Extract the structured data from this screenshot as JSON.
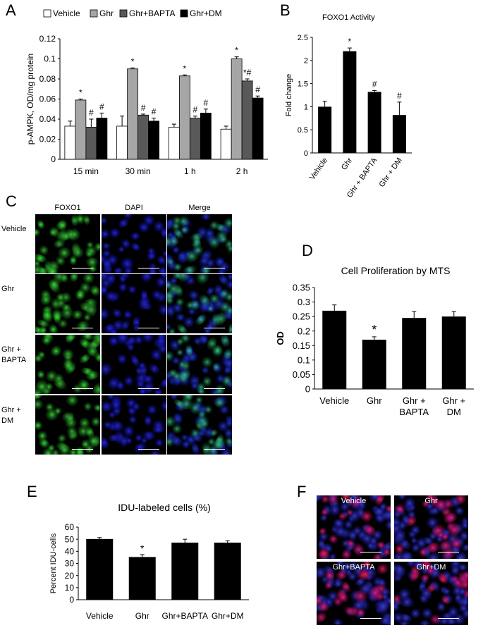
{
  "panels": {
    "A": "A",
    "B": "B",
    "C": "C",
    "D": "D",
    "E": "E",
    "F": "F"
  },
  "colors": {
    "vehicle": "#ffffff",
    "ghr": "#a6a6a6",
    "ghr_bapta": "#595959",
    "ghr_dm": "#000000",
    "bar": "#000000",
    "dapi": "#0000cc",
    "foxo": "#22b522"
  },
  "chart_data": [
    {
      "id": "A",
      "type": "bar",
      "ylabel": "p-AMPK, OD/mg protein",
      "ylim": [
        0,
        0.12
      ],
      "yticks": [
        "0",
        "0.02",
        "0.04",
        "0.06",
        "0.08",
        "0.1",
        "0.12"
      ],
      "categories": [
        "15 min",
        "30 min",
        "1 h",
        "2 h"
      ],
      "series": [
        {
          "name": "Vehicle",
          "color": "#ffffff",
          "values": [
            0.033,
            0.033,
            0.032,
            0.03
          ],
          "errors": [
            0.005,
            0.01,
            0.003,
            0.003
          ],
          "annot": [
            "",
            "",
            "",
            ""
          ]
        },
        {
          "name": "Ghr",
          "color": "#a6a6a6",
          "values": [
            0.059,
            0.09,
            0.083,
            0.1
          ],
          "errors": [
            0.001,
            0.001,
            0.001,
            0.002
          ],
          "annot": [
            "*",
            "*",
            "*",
            "*"
          ]
        },
        {
          "name": "Ghr+BAPTA",
          "color": "#595959",
          "values": [
            0.032,
            0.044,
            0.041,
            0.078
          ],
          "errors": [
            0.008,
            0.001,
            0.002,
            0.002
          ],
          "annot": [
            "#",
            "#",
            "#",
            "*#"
          ]
        },
        {
          "name": "Ghr+DM",
          "color": "#000000",
          "values": [
            0.041,
            0.038,
            0.046,
            0.061
          ],
          "errors": [
            0.005,
            0.003,
            0.004,
            0.002
          ],
          "annot": [
            "#",
            "#",
            "#",
            "#"
          ]
        }
      ],
      "legend_position": "top"
    },
    {
      "id": "B",
      "type": "bar",
      "title": "FOXO1 Activity",
      "ylabel": "Fold change",
      "ylim": [
        0,
        2.5
      ],
      "yticks": [
        "0",
        "0.5",
        "1",
        "1.5",
        "2",
        "2.5"
      ],
      "categories": [
        "Vehicle",
        "Ghr",
        "Ghr + BAPTA",
        "Ghr + DM"
      ],
      "values": [
        1.0,
        2.2,
        1.32,
        0.82
      ],
      "errors": [
        0.12,
        0.07,
        0.03,
        0.28
      ],
      "annot": [
        "",
        "*",
        "#",
        "#"
      ]
    },
    {
      "id": "D",
      "type": "bar",
      "title": "Cell Proliferation by MTS",
      "ylabel": "OD",
      "ylim": [
        0,
        0.35
      ],
      "yticks": [
        "0",
        "0.05",
        "0.1",
        "0.15",
        "0.2",
        "0.25",
        "0.3",
        "0.35"
      ],
      "categories": [
        [
          "Vehicle"
        ],
        [
          "Ghr"
        ],
        [
          "Ghr +",
          "BAPTA"
        ],
        [
          "Ghr +",
          "DM"
        ]
      ],
      "values": [
        0.27,
        0.17,
        0.245,
        0.25
      ],
      "errors": [
        0.02,
        0.01,
        0.022,
        0.017
      ],
      "annot": [
        "",
        "*",
        "",
        ""
      ]
    },
    {
      "id": "E",
      "type": "bar",
      "title": "IDU-labeled cells (%)",
      "ylabel": "Percent IDU-cells",
      "ylim": [
        0,
        60
      ],
      "yticks": [
        "0",
        "10",
        "20",
        "30",
        "40",
        "50",
        "60"
      ],
      "categories": [
        "Vehicle",
        "Ghr",
        "Ghr+BAPTA",
        "Ghr+DM"
      ],
      "values": [
        50.2,
        35.3,
        47.2,
        47.2
      ],
      "errors": [
        1.2,
        2.0,
        2.8,
        1.5
      ],
      "annot": [
        "",
        "*",
        "",
        ""
      ]
    }
  ],
  "panelC": {
    "columns": [
      "FOXO1",
      "DAPI",
      "Merge"
    ],
    "rows": [
      [
        "Vehicle"
      ],
      [
        "Ghr"
      ],
      [
        "Ghr +",
        "BAPTA"
      ],
      [
        "Ghr +",
        "DM"
      ]
    ]
  },
  "panelF": {
    "labels": [
      "Vehicle",
      "Ghr",
      "Ghr+BAPTA",
      "Ghr+DM"
    ]
  }
}
